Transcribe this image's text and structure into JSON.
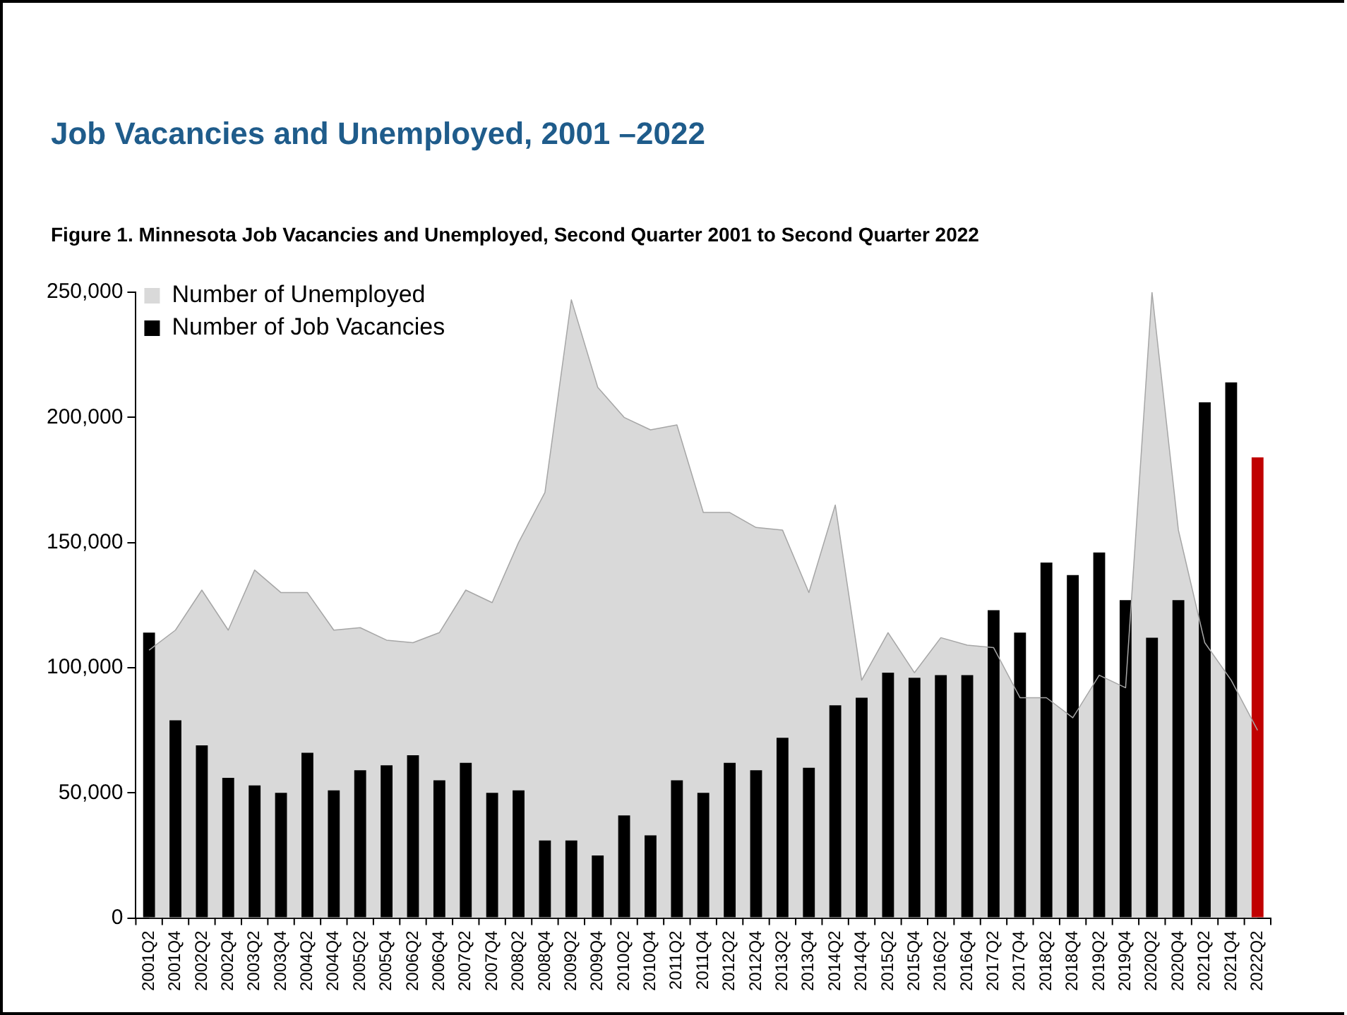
{
  "chart_data": {
    "type": "bar",
    "title": "Job Vacancies and Unemployed, 2001 –2022",
    "subtitle": "Figure 1. Minnesota Job Vacancies and Unemployed, Second Quarter 2001 to Second Quarter 2022",
    "categories": [
      "2001Q2",
      "2001Q4",
      "2002Q2",
      "2002Q4",
      "2003Q2",
      "2003Q4",
      "2004Q2",
      "2004Q4",
      "2005Q2",
      "2005Q4",
      "2006Q2",
      "2006Q4",
      "2007Q2",
      "2007Q4",
      "2008Q2",
      "2008Q4",
      "2009Q2",
      "2009Q4",
      "2010Q2",
      "2010Q4",
      "2011Q2",
      "2011Q4",
      "2012Q2",
      "2012Q4",
      "2013Q2",
      "2013Q4",
      "2014Q2",
      "2014Q4",
      "2015Q2",
      "2015Q4",
      "2016Q2",
      "2016Q4",
      "2017Q2",
      "2017Q4",
      "2018Q2",
      "2018Q4",
      "2019Q2",
      "2019Q4",
      "2020Q2",
      "2020Q4",
      "2021Q2",
      "2021Q4",
      "2022Q2"
    ],
    "series": [
      {
        "name": "Number of Unemployed",
        "type": "area",
        "color": "#d9d9d9",
        "values": [
          107000,
          115000,
          131000,
          115000,
          139000,
          130000,
          130000,
          115000,
          116000,
          111000,
          110000,
          114000,
          131000,
          126000,
          150000,
          170000,
          247000,
          212000,
          200000,
          195000,
          197000,
          162000,
          162000,
          156000,
          155000,
          130000,
          165000,
          95000,
          114000,
          98000,
          112000,
          109000,
          108000,
          88000,
          88000,
          80000,
          97000,
          92000,
          250000,
          155000,
          110000,
          95000,
          75000
        ]
      },
      {
        "name": "Number of Job Vacancies",
        "type": "bar",
        "color": "#000000",
        "colors": [
          "#000000",
          "#000000",
          "#000000",
          "#000000",
          "#000000",
          "#000000",
          "#000000",
          "#000000",
          "#000000",
          "#000000",
          "#000000",
          "#000000",
          "#000000",
          "#000000",
          "#000000",
          "#000000",
          "#000000",
          "#000000",
          "#000000",
          "#000000",
          "#000000",
          "#000000",
          "#000000",
          "#000000",
          "#000000",
          "#000000",
          "#000000",
          "#000000",
          "#000000",
          "#000000",
          "#000000",
          "#000000",
          "#000000",
          "#000000",
          "#000000",
          "#000000",
          "#000000",
          "#000000",
          "#000000",
          "#000000",
          "#000000",
          "#000000",
          "#c00000"
        ],
        "values": [
          114000,
          79000,
          69000,
          56000,
          53000,
          50000,
          66000,
          51000,
          59000,
          61000,
          65000,
          55000,
          62000,
          50000,
          51000,
          31000,
          31000,
          25000,
          41000,
          33000,
          55000,
          50000,
          62000,
          59000,
          72000,
          60000,
          85000,
          88000,
          98000,
          96000,
          97000,
          97000,
          123000,
          114000,
          142000,
          137000,
          146000,
          127000,
          112000,
          127000,
          206000,
          214000,
          184000
        ]
      }
    ],
    "ylim": [
      0,
      250000
    ],
    "yticks": [
      {
        "value": 0,
        "label": "0"
      },
      {
        "value": 50000,
        "label": "50,000"
      },
      {
        "value": 100000,
        "label": "100,000"
      },
      {
        "value": 150000,
        "label": "150,000"
      },
      {
        "value": 200000,
        "label": "200,000"
      },
      {
        "value": 250000,
        "label": "250,000"
      }
    ],
    "grid": false,
    "legend": "top left"
  }
}
